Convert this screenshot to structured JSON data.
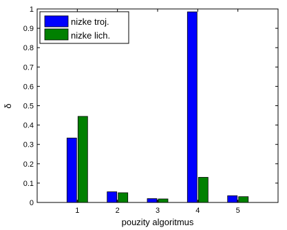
{
  "chart_data": {
    "type": "bar",
    "categories": [
      "1",
      "2",
      "3",
      "4",
      "5"
    ],
    "series": [
      {
        "name": "nizke troj.",
        "color": "#0000ff",
        "values": [
          0.333,
          0.055,
          0.02,
          0.985,
          0.035
        ]
      },
      {
        "name": "nizke lich.",
        "color": "#008000",
        "values": [
          0.445,
          0.05,
          0.018,
          0.13,
          0.03
        ]
      }
    ],
    "xlabel": "pouzity algoritmus",
    "ylabel": "δ",
    "ylim": [
      0,
      1
    ],
    "yticks": [
      "0",
      "0.1",
      "0.2",
      "0.3",
      "0.4",
      "0.5",
      "0.6",
      "0.7",
      "0.8",
      "0.9",
      "1"
    ],
    "grid": false,
    "legend_position": "top-left"
  }
}
